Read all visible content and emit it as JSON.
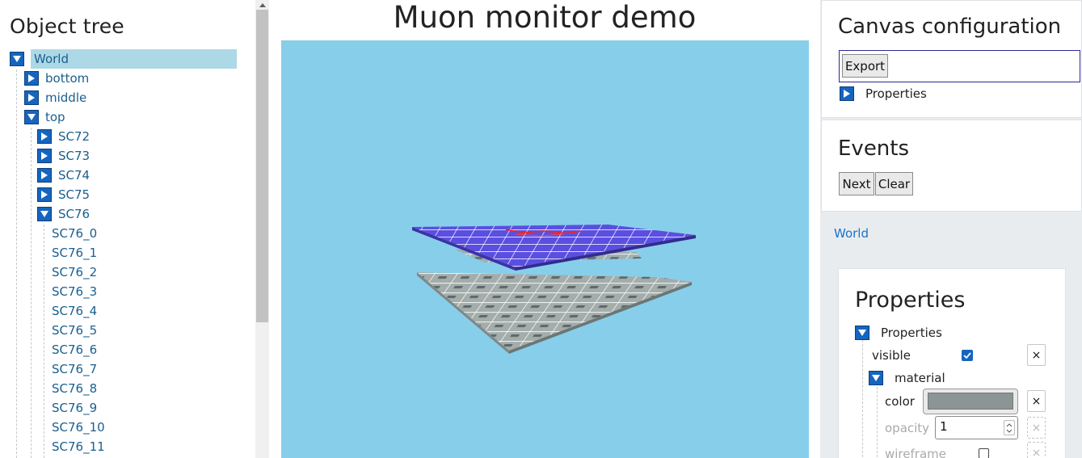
{
  "object_tree": {
    "title": "Object tree",
    "items": [
      {
        "label": "World",
        "state": "expanded",
        "level": 0,
        "selected": true
      },
      {
        "label": "bottom",
        "state": "collapsed",
        "level": 1
      },
      {
        "label": "middle",
        "state": "collapsed",
        "level": 1
      },
      {
        "label": "top",
        "state": "expanded",
        "level": 1
      },
      {
        "label": "SC72",
        "state": "collapsed",
        "level": 2
      },
      {
        "label": "SC73",
        "state": "collapsed",
        "level": 2
      },
      {
        "label": "SC74",
        "state": "collapsed",
        "level": 2
      },
      {
        "label": "SC75",
        "state": "collapsed",
        "level": 2
      },
      {
        "label": "SC76",
        "state": "expanded",
        "level": 2
      },
      {
        "label": "SC76_0",
        "state": "leaf",
        "level": 3
      },
      {
        "label": "SC76_1",
        "state": "leaf",
        "level": 3
      },
      {
        "label": "SC76_2",
        "state": "leaf",
        "level": 3
      },
      {
        "label": "SC76_3",
        "state": "leaf",
        "level": 3
      },
      {
        "label": "SC76_4",
        "state": "leaf",
        "level": 3
      },
      {
        "label": "SC76_5",
        "state": "leaf",
        "level": 3
      },
      {
        "label": "SC76_6",
        "state": "leaf",
        "level": 3
      },
      {
        "label": "SC76_7",
        "state": "leaf",
        "level": 3
      },
      {
        "label": "SC76_8",
        "state": "leaf",
        "level": 3
      },
      {
        "label": "SC76_9",
        "state": "leaf",
        "level": 3
      },
      {
        "label": "SC76_10",
        "state": "leaf",
        "level": 3
      },
      {
        "label": "SC76_11",
        "state": "leaf",
        "level": 3
      }
    ]
  },
  "main": {
    "title": "Muon monitor demo"
  },
  "canvas_config": {
    "title": "Canvas configuration",
    "export_label": "Export",
    "properties_label": "Properties"
  },
  "events": {
    "title": "Events",
    "next_label": "Next",
    "clear_label": "Clear"
  },
  "breadcrumb": {
    "label": "World"
  },
  "properties": {
    "title": "Properties",
    "group_label": "Properties",
    "visible_label": "visible",
    "visible_checked": true,
    "material_label": "material",
    "color_label": "color",
    "color_value": "#8c9595",
    "opacity_label": "opacity",
    "opacity_value": "1",
    "wireframe_label": "wireframe",
    "wireframe_checked": false,
    "clear_glyph": "×"
  },
  "colors": {
    "accent": "#1565c0",
    "link": "#1a5f8f",
    "selection": "#add8e6",
    "canvas_bg": "#87ceeb",
    "top_layer": "#5a4fe0",
    "detector_gray": "#8c9595"
  }
}
